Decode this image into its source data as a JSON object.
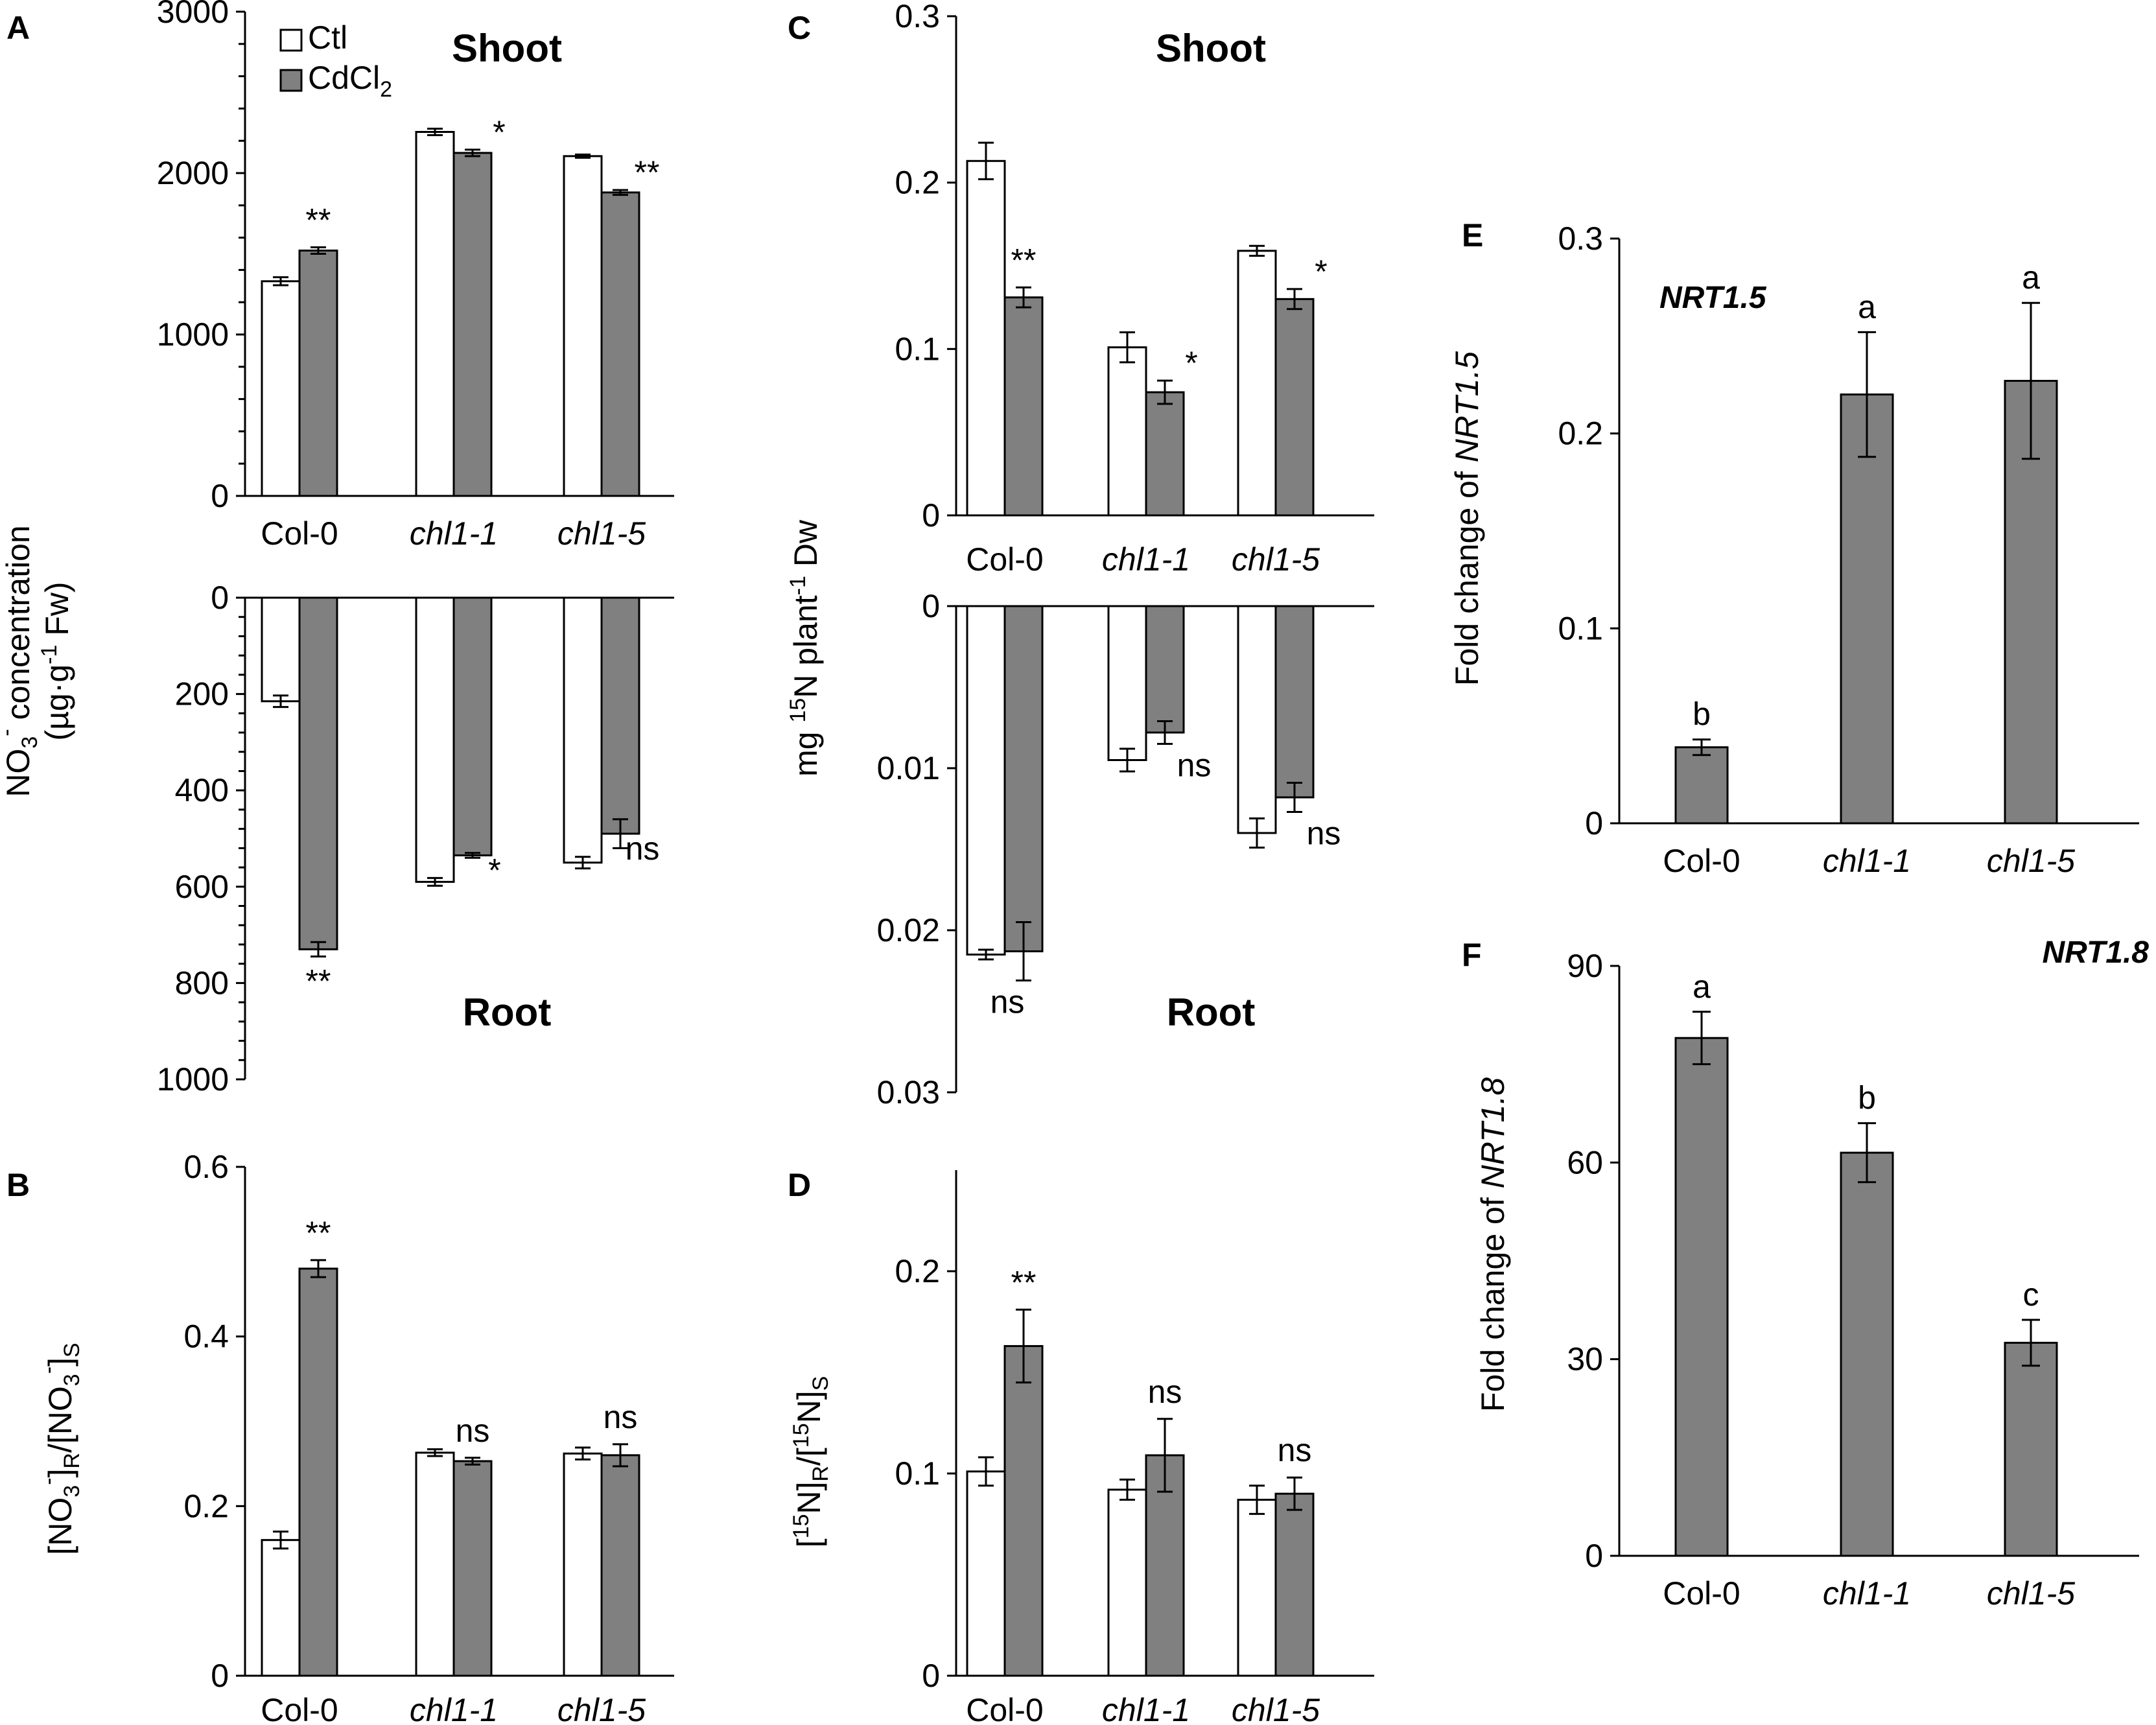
{
  "colors": {
    "ctl_fill": "#ffffff",
    "cd_fill": "#808080",
    "stroke": "#000000"
  },
  "legend": {
    "ctl": "Ctl",
    "cd_prefix": "CdCl",
    "cd_sub": "2"
  },
  "chart_data": [
    {
      "panel": "A",
      "type": "bar",
      "title": "Shoot",
      "categories": [
        "Col-0",
        "chl1-1",
        "chl1-5"
      ],
      "series": [
        {
          "name": "Ctl",
          "values": [
            1330,
            2255,
            2105
          ],
          "errors": [
            25,
            20,
            10
          ]
        },
        {
          "name": "CdCl2",
          "values": [
            1520,
            2125,
            1880
          ],
          "errors": [
            20,
            20,
            15
          ]
        }
      ],
      "signif": [
        "**",
        "*",
        "**"
      ],
      "ylim": [
        0,
        3000
      ],
      "yticks": [
        "0",
        "1000",
        "2000",
        "3000"
      ],
      "ylabel_line1": "NO",
      "ylabel_sub": "3",
      "ylabel_sup": "-",
      "ylabel_rest": " concentration",
      "ylabel_line2": "(µg·g",
      "ylabel_line2_sup": "-1",
      "ylabel_line2_end": " Fw)"
    },
    {
      "panel": "A-root",
      "type": "bar",
      "title": "Root",
      "inverted": true,
      "categories": [
        "Col-0",
        "chl1-1",
        "chl1-5"
      ],
      "series": [
        {
          "name": "Ctl",
          "values": [
            215,
            590,
            550
          ],
          "errors": [
            12,
            8,
            12
          ]
        },
        {
          "name": "CdCl2",
          "values": [
            730,
            535,
            490
          ],
          "errors": [
            15,
            5,
            30
          ]
        }
      ],
      "signif": [
        "**",
        "*",
        "ns"
      ],
      "ylim": [
        0,
        1000
      ],
      "yticks": [
        "0",
        "200",
        "400",
        "600",
        "800",
        "1000"
      ]
    },
    {
      "panel": "B",
      "type": "bar",
      "categories": [
        "Col-0",
        "chl1-1",
        "chl1-5"
      ],
      "series": [
        {
          "name": "Ctl",
          "values": [
            0.16,
            0.263,
            0.262
          ],
          "errors": [
            0.01,
            0.004,
            0.007
          ]
        },
        {
          "name": "CdCl2",
          "values": [
            0.48,
            0.253,
            0.26
          ],
          "errors": [
            0.01,
            0.004,
            0.013
          ]
        }
      ],
      "signif": [
        "**",
        "ns",
        "ns"
      ],
      "ylim": [
        0,
        0.6
      ],
      "yticks": [
        "0",
        "0.2",
        "0.4",
        "0.6"
      ],
      "ylabel": "[NO3-]R/[NO3-]S"
    },
    {
      "panel": "C",
      "type": "bar",
      "title": "Shoot",
      "categories": [
        "Col-0",
        "chl1-1",
        "chl1-5"
      ],
      "series": [
        {
          "name": "Ctl",
          "values": [
            0.213,
            0.101,
            0.159
          ],
          "errors": [
            0.011,
            0.009,
            0.003
          ]
        },
        {
          "name": "CdCl2",
          "values": [
            0.131,
            0.074,
            0.13
          ],
          "errors": [
            0.006,
            0.007,
            0.006
          ]
        }
      ],
      "signif": [
        "**",
        "*",
        "*"
      ],
      "ylim": [
        0,
        0.3
      ],
      "yticks": [
        "0",
        "0.1",
        "0.2",
        "0.3"
      ],
      "ylabel_pre": "mg ",
      "ylabel_sup1": "15",
      "ylabel_mid": "N plant",
      "ylabel_sup2": "-1",
      "ylabel_end": " Dw"
    },
    {
      "panel": "C-root",
      "type": "bar",
      "title": "Root",
      "inverted": true,
      "categories": [
        "Col-0",
        "chl1-1",
        "chl1-5"
      ],
      "series": [
        {
          "name": "Ctl",
          "values": [
            0.0215,
            0.0095,
            0.014
          ],
          "errors": [
            0.0003,
            0.0007,
            0.0009
          ]
        },
        {
          "name": "CdCl2",
          "values": [
            0.0213,
            0.0078,
            0.0118
          ],
          "errors": [
            0.0018,
            0.0007,
            0.0009
          ]
        }
      ],
      "signif": [
        "ns",
        "ns",
        "ns"
      ],
      "ylim": [
        0,
        0.03
      ],
      "yticks": [
        "0",
        "0.01",
        "0.02",
        "0.03"
      ]
    },
    {
      "panel": "D",
      "type": "bar",
      "categories": [
        "Col-0",
        "chl1-1",
        "chl1-5"
      ],
      "series": [
        {
          "name": "Ctl",
          "values": [
            0.101,
            0.092,
            0.087
          ],
          "errors": [
            0.007,
            0.005,
            0.007
          ]
        },
        {
          "name": "CdCl2",
          "values": [
            0.163,
            0.109,
            0.09
          ],
          "errors": [
            0.018,
            0.018,
            0.008
          ]
        }
      ],
      "signif": [
        "**",
        "ns",
        "ns"
      ],
      "ylim": [
        0,
        0.25
      ],
      "yticks": [
        "0",
        "0.1",
        "0.2"
      ],
      "ylabel": "[15N]R/[15N]S"
    },
    {
      "panel": "E",
      "type": "bar",
      "gene": "NRT1.5",
      "categories": [
        "Col-0",
        "chl1-1",
        "chl1-5"
      ],
      "values": [
        0.039,
        0.22,
        0.227
      ],
      "errors": [
        0.004,
        0.032,
        0.04
      ],
      "letters": [
        "b",
        "a",
        "a"
      ],
      "ylim": [
        0,
        0.3
      ],
      "yticks": [
        "0",
        "0.1",
        "0.2",
        "0.3"
      ],
      "ylabel_pre": "Fold change of ",
      "ylabel_gene": "NRT1.5"
    },
    {
      "panel": "F",
      "type": "bar",
      "gene": "NRT1.8",
      "categories": [
        "Col-0",
        "chl1-1",
        "chl1-5"
      ],
      "values": [
        79,
        61.5,
        32.5
      ],
      "errors": [
        4,
        4.5,
        3.5
      ],
      "letters": [
        "a",
        "b",
        "c"
      ],
      "ylim": [
        0,
        90
      ],
      "yticks": [
        "0",
        "30",
        "60",
        "90"
      ],
      "ylabel_pre": "Fold change of ",
      "ylabel_gene": "NRT1.8"
    }
  ]
}
